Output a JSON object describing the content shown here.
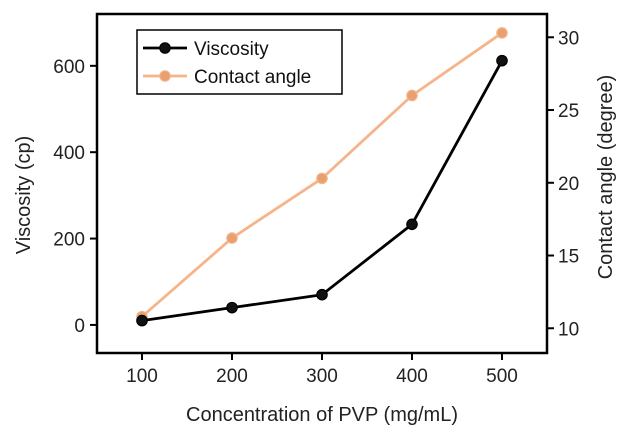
{
  "chart_data": {
    "type": "line",
    "x": [
      100,
      200,
      300,
      400,
      500
    ],
    "xlabel": "Concentration of PVP (mg/mL)",
    "xticks": [
      100,
      200,
      300,
      400,
      500
    ],
    "xlim": [
      50,
      550
    ],
    "ylabel_left": "Viscosity (cp)",
    "ylim_left": [
      -65,
      720
    ],
    "yticks_left": [
      0,
      200,
      400,
      600
    ],
    "ylabel_right": "Contact angle (degree)",
    "ylim_right": [
      8.3,
      31.6
    ],
    "yticks_right": [
      10,
      15,
      20,
      25,
      30
    ],
    "series": [
      {
        "name": "Viscosity",
        "axis": "left",
        "color": "#000000",
        "marker_color": "#111111",
        "values": [
          10,
          40,
          70,
          233,
          612
        ]
      },
      {
        "name": "Contact angle",
        "axis": "right",
        "color": "#F5B48A",
        "marker_color": "#E8A070",
        "values": [
          10.8,
          16.2,
          20.3,
          26.0,
          30.3
        ]
      }
    ],
    "legend_position": "top-left",
    "grid": false
  }
}
